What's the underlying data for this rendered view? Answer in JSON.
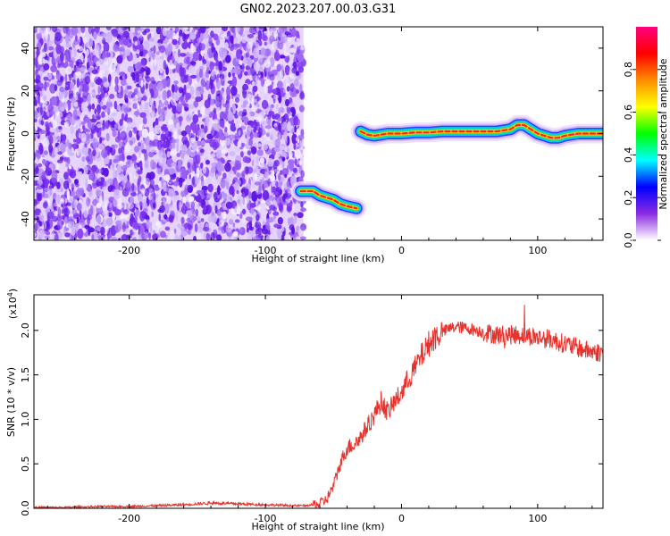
{
  "chart_data": [
    {
      "type": "heatmap",
      "title": "GN02.2023.207.00.03.G31",
      "xlabel": "Height of straight line (km)",
      "ylabel": "Frequency (Hz)",
      "xlim": [
        -270,
        148
      ],
      "ylim": [
        -50,
        50
      ],
      "xticks": [
        -200,
        -100,
        0,
        100
      ],
      "yticks": [
        -40,
        -20,
        0,
        20,
        40
      ],
      "noise_region": {
        "x_range": [
          -270,
          -72
        ],
        "y_range": [
          -50,
          50
        ],
        "dominant_color": "#7a2ff0"
      },
      "ridge_segments": [
        {
          "points": [
            [
              -74,
              -27
            ],
            [
              -65,
              -27
            ],
            [
              -60,
              -29
            ],
            [
              -55,
              -30
            ],
            [
              -50,
              -31
            ],
            [
              -45,
              -33
            ],
            [
              -40,
              -34
            ],
            [
              -33,
              -35
            ]
          ]
        },
        {
          "points": [
            [
              -30,
              1
            ],
            [
              -25,
              -0.5
            ],
            [
              -20,
              -1
            ],
            [
              -10,
              0
            ],
            [
              0,
              0
            ],
            [
              10,
              0.5
            ],
            [
              20,
              0.5
            ],
            [
              30,
              1
            ],
            [
              40,
              1
            ],
            [
              50,
              1
            ],
            [
              60,
              1
            ],
            [
              70,
              1
            ],
            [
              80,
              2
            ],
            [
              85,
              4
            ],
            [
              90,
              4
            ],
            [
              95,
              2
            ],
            [
              100,
              0
            ],
            [
              105,
              -1
            ],
            [
              110,
              -2
            ],
            [
              115,
              -2
            ],
            [
              120,
              -1
            ],
            [
              130,
              0
            ],
            [
              140,
              0
            ],
            [
              148,
              0
            ]
          ]
        }
      ],
      "colorbar": {
        "label": "Normalized spectral amplitude",
        "range": [
          0,
          1
        ],
        "ticks": [
          "0.0",
          "0.2",
          "0.4",
          "0.6",
          "0.8"
        ],
        "colors": [
          "#ffffff",
          "#8a2be2",
          "#0000ff",
          "#00ffff",
          "#00ff00",
          "#ffff00",
          "#ff8c00",
          "#ff0000",
          "#ff0080"
        ]
      }
    },
    {
      "type": "line",
      "xlabel": "Height of straight line (km)",
      "ylabel": "SNR (10 * v/v)",
      "y_multiplier": "(x10",
      "y_multiplier_exp": "4",
      "y_multiplier_close": ")",
      "xlim": [
        -270,
        148
      ],
      "ylim": [
        0,
        2.4
      ],
      "xticks": [
        -200,
        -100,
        0,
        100
      ],
      "yticks": [
        "0.0",
        "0.5",
        "1.0",
        "1.5",
        "2.0"
      ],
      "series": [
        {
          "color": "#e8312c",
          "x": [
            -270,
            -250,
            -220,
            -200,
            -180,
            -160,
            -150,
            -140,
            -120,
            -100,
            -80,
            -70,
            -60,
            -55,
            -50,
            -45,
            -40,
            -35,
            -30,
            -25,
            -20,
            -15,
            -10,
            -5,
            0,
            5,
            10,
            15,
            20,
            25,
            30,
            35,
            40,
            50,
            60,
            70,
            80,
            90,
            100,
            110,
            120,
            130,
            140,
            148
          ],
          "values": [
            0.01,
            0.01,
            0.02,
            0.02,
            0.03,
            0.04,
            0.05,
            0.06,
            0.05,
            0.04,
            0.03,
            0.03,
            0.05,
            0.1,
            0.25,
            0.5,
            0.68,
            0.72,
            0.8,
            0.92,
            1.05,
            1.2,
            1.08,
            1.2,
            1.3,
            1.45,
            1.58,
            1.72,
            1.85,
            1.93,
            1.98,
            2.02,
            2.04,
            2.02,
            1.98,
            1.95,
            1.95,
            1.95,
            1.92,
            1.9,
            1.85,
            1.8,
            1.76,
            1.75
          ]
        }
      ]
    }
  ]
}
